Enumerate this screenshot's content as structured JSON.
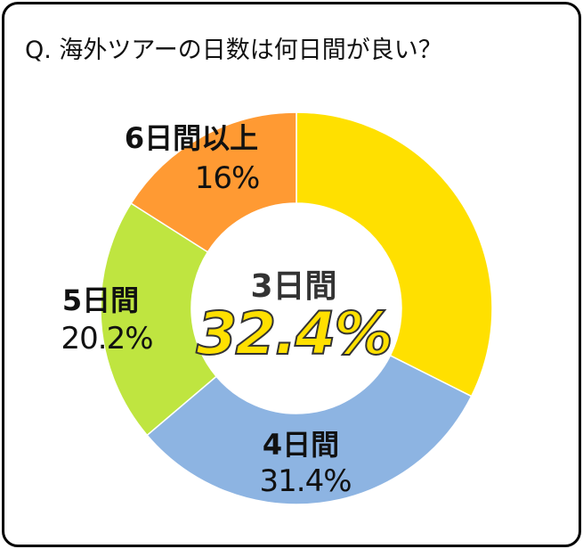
{
  "title": "Q. 海外ツアーの日数は何日間が良い？",
  "chart_data": {
    "type": "pie",
    "donut": true,
    "title": "Q. 海外ツアーの日数は何日間が良い？",
    "categories": [
      "3日間",
      "4日間",
      "5日間",
      "6日間以上"
    ],
    "values": [
      32.4,
      31.4,
      20.2,
      16
    ],
    "labels": [
      "32.4%",
      "31.4%",
      "20.2%",
      "16%"
    ],
    "colors": [
      "#FFE000",
      "#8DB4E2",
      "#BFE540",
      "#FF9A33"
    ],
    "start": "top",
    "direction": "clockwise",
    "legend": "none"
  }
}
